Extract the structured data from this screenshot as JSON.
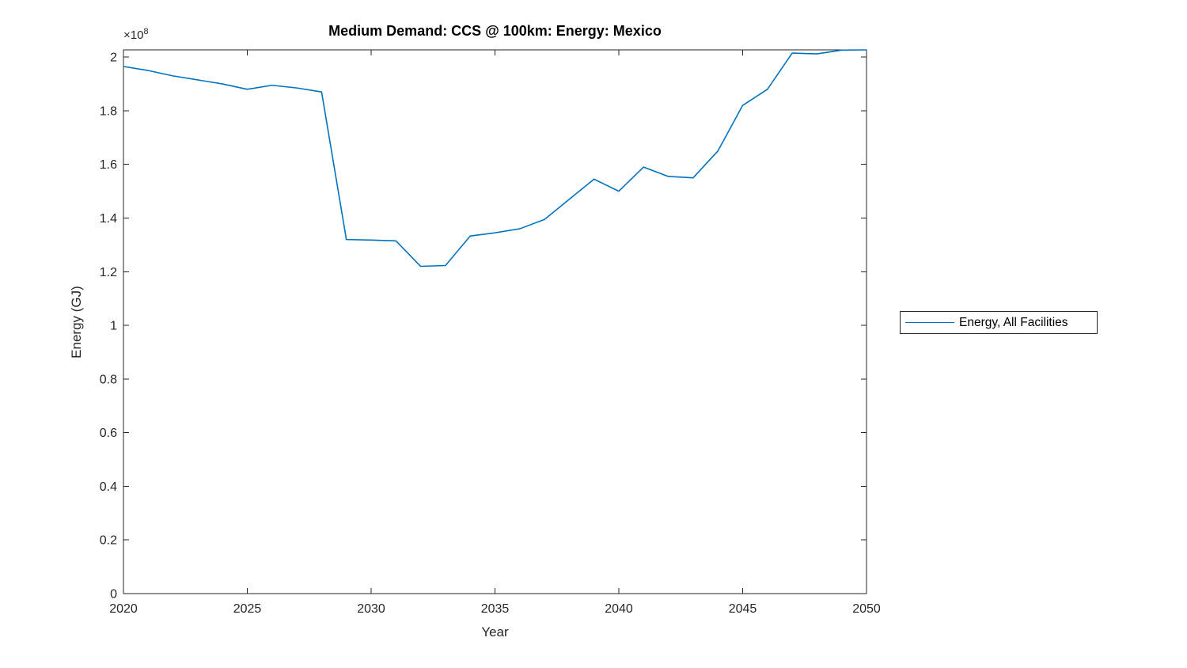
{
  "figure": {
    "background": "#ffffff",
    "axis_color": "#262626",
    "line_color": "#0072BD"
  },
  "chart_data": {
    "type": "line",
    "title": "Medium Demand: CCS @ 100km: Energy: Mexico",
    "xlabel": "Year",
    "ylabel": "Energy (GJ)",
    "y_exponent": {
      "prefix": "×10",
      "sup": "8"
    },
    "grid": false,
    "legend_position": "right-outside",
    "xlim": [
      2020,
      2050
    ],
    "ylim": [
      0,
      202700000
    ],
    "x_ticks": [
      2020,
      2025,
      2030,
      2035,
      2040,
      2045,
      2050
    ],
    "x_tick_labels": [
      "2020",
      "2025",
      "2030",
      "2035",
      "2040",
      "2045",
      "2050"
    ],
    "y_ticks": [
      0,
      20000000,
      40000000,
      60000000,
      80000000,
      100000000,
      120000000,
      140000000,
      160000000,
      180000000,
      200000000
    ],
    "y_tick_labels": [
      "0",
      "0.2",
      "0.4",
      "0.6",
      "0.8",
      "1",
      "1.2",
      "1.4",
      "1.6",
      "1.8",
      "2"
    ],
    "x": [
      2020,
      2021,
      2022,
      2023,
      2024,
      2025,
      2026,
      2027,
      2028,
      2029,
      2030,
      2031,
      2032,
      2033,
      2034,
      2035,
      2036,
      2037,
      2038,
      2039,
      2040,
      2041,
      2042,
      2043,
      2044,
      2045,
      2046,
      2047,
      2048,
      2049,
      2050
    ],
    "series": [
      {
        "name": "Energy, All Facilities",
        "color": "#0072BD",
        "values": [
          196500000,
          195000000,
          193000000,
          191500000,
          190000000,
          188000000,
          189500000,
          188500000,
          187000000,
          132000000,
          131800000,
          131500000,
          122000000,
          122300000,
          133300000,
          134500000,
          136000000,
          139500000,
          147000000,
          154500000,
          150000000,
          159000000,
          155500000,
          155000000,
          165000000,
          182000000,
          188000000,
          201500000,
          201200000,
          202600000,
          202700000
        ]
      }
    ]
  },
  "legend": {
    "entries": [
      {
        "label": "Energy, All Facilities",
        "color": "#0072BD"
      }
    ]
  }
}
